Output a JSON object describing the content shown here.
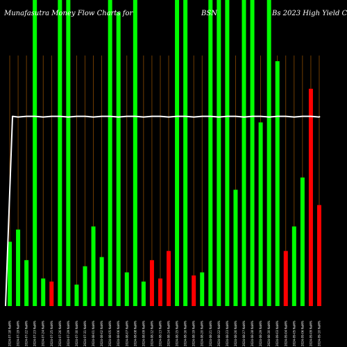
{
  "chart_data": {
    "type": "bar",
    "title": "Munafa Sutra Money Flow Charts for ... Bs 2023 High Yield C",
    "title_fragments": [
      "Munafasutra  Money Flow  Charts for",
      "BSN",
      "Bs 2023 High Yield C"
    ],
    "ylim": [
      0,
      100
    ],
    "grid": true,
    "bars": [
      {
        "date": "2024-07-18 NaN%",
        "value": 21,
        "color": "green"
      },
      {
        "date": "2024-07-19 NaN%",
        "value": 25,
        "color": "green"
      },
      {
        "date": "2024-07-22 NaN%",
        "value": 15,
        "color": "green"
      },
      {
        "date": "2024-07-23 NaN%",
        "value": 100,
        "color": "green"
      },
      {
        "date": "2024-07-24 NaN%",
        "value": 9,
        "color": "green"
      },
      {
        "date": "2024-07-25 NaN%",
        "value": 8,
        "color": "red"
      },
      {
        "date": "2024-07-26 NaN%",
        "value": 100,
        "color": "green"
      },
      {
        "date": "2024-07-29 NaN%",
        "value": 100,
        "color": "green"
      },
      {
        "date": "2024-07-30 NaN%",
        "value": 7,
        "color": "green"
      },
      {
        "date": "2024-07-31 NaN%",
        "value": 13,
        "color": "green"
      },
      {
        "date": "2024-08-01 NaN%",
        "value": 26,
        "color": "green"
      },
      {
        "date": "2024-08-02 NaN%",
        "value": 16,
        "color": "green"
      },
      {
        "date": "2024-08-05 NaN%",
        "value": 100,
        "color": "green"
      },
      {
        "date": "2024-08-06 NaN%",
        "value": 96,
        "color": "green"
      },
      {
        "date": "2024-08-07 NaN%",
        "value": 11,
        "color": "green"
      },
      {
        "date": "2024-08-08 NaN%",
        "value": 100,
        "color": "green"
      },
      {
        "date": "2024-08-09 NaN%",
        "value": 8,
        "color": "green"
      },
      {
        "date": "2024-08-12 NaN%",
        "value": 15,
        "color": "red"
      },
      {
        "date": "2024-08-13 NaN%",
        "value": 9,
        "color": "red"
      },
      {
        "date": "2024-08-14 NaN%",
        "value": 18,
        "color": "red"
      },
      {
        "date": "2024-08-15 NaN%",
        "value": 100,
        "color": "green"
      },
      {
        "date": "2024-08-16 NaN%",
        "value": 100,
        "color": "green"
      },
      {
        "date": "2024-08-19 NaN%",
        "value": 10,
        "color": "red"
      },
      {
        "date": "2024-08-20 NaN%",
        "value": 11,
        "color": "green"
      },
      {
        "date": "2024-08-21 NaN%",
        "value": 100,
        "color": "green"
      },
      {
        "date": "2024-08-22 NaN%",
        "value": 100,
        "color": "green"
      },
      {
        "date": "2024-08-23 NaN%",
        "value": 100,
        "color": "green"
      },
      {
        "date": "2024-08-26 NaN%",
        "value": 38,
        "color": "green"
      },
      {
        "date": "2024-08-27 NaN%",
        "value": 100,
        "color": "green"
      },
      {
        "date": "2024-08-28 NaN%",
        "value": 100,
        "color": "green"
      },
      {
        "date": "2024-08-29 NaN%",
        "value": 60,
        "color": "green"
      },
      {
        "date": "2024-08-30 NaN%",
        "value": 100,
        "color": "green"
      },
      {
        "date": "2024-09-03 NaN%",
        "value": 80,
        "color": "green"
      },
      {
        "date": "2024-09-04 NaN%",
        "value": 18,
        "color": "red"
      },
      {
        "date": "2024-09-05 NaN%",
        "value": 26,
        "color": "green"
      },
      {
        "date": "2024-09-06 NaN%",
        "value": 42,
        "color": "green"
      },
      {
        "date": "2024-09-09 NaN%",
        "value": 71,
        "color": "red"
      },
      {
        "date": "2024-09-10 NaN%",
        "value": 33,
        "color": "red"
      }
    ],
    "line_values": [
      62,
      62,
      62,
      62,
      62,
      62,
      62,
      62,
      62,
      62,
      62,
      62,
      62,
      62,
      62,
      62,
      62,
      62,
      62,
      62,
      62,
      62,
      62,
      62,
      62,
      62,
      62,
      62,
      62,
      62,
      62,
      62,
      62,
      62,
      62,
      62,
      62,
      62
    ],
    "line_start_value": 0
  },
  "colors": {
    "background": "#000000",
    "green": "#00ff00",
    "red": "#ff0000",
    "line": "#ffffff",
    "grid": "#8b4a00",
    "text": "#ffffff"
  }
}
